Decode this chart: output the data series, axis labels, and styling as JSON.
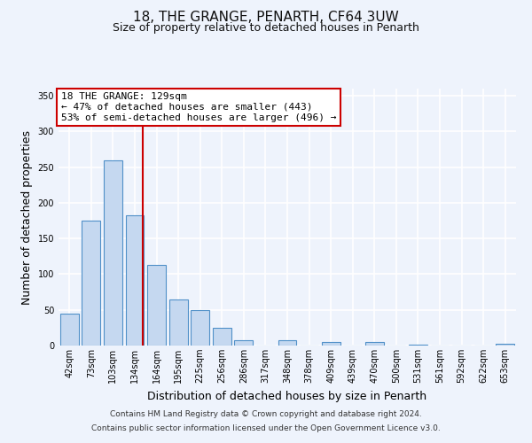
{
  "title": "18, THE GRANGE, PENARTH, CF64 3UW",
  "subtitle": "Size of property relative to detached houses in Penarth",
  "xlabel": "Distribution of detached houses by size in Penarth",
  "ylabel": "Number of detached properties",
  "categories": [
    "42sqm",
    "73sqm",
    "103sqm",
    "134sqm",
    "164sqm",
    "195sqm",
    "225sqm",
    "256sqm",
    "286sqm",
    "317sqm",
    "348sqm",
    "378sqm",
    "409sqm",
    "439sqm",
    "470sqm",
    "500sqm",
    "531sqm",
    "561sqm",
    "592sqm",
    "622sqm",
    "653sqm"
  ],
  "values": [
    45,
    175,
    260,
    183,
    113,
    64,
    50,
    25,
    7,
    0,
    8,
    0,
    5,
    0,
    5,
    0,
    1,
    0,
    0,
    0,
    2
  ],
  "bar_color": "#c5d8f0",
  "bar_edge_color": "#5090c8",
  "vline_color": "#cc0000",
  "vline_index": 3,
  "annotation_box_text": "18 THE GRANGE: 129sqm\n← 47% of detached houses are smaller (443)\n53% of semi-detached houses are larger (496) →",
  "annotation_box_color": "#cc0000",
  "ylim": [
    0,
    360
  ],
  "yticks": [
    0,
    50,
    100,
    150,
    200,
    250,
    300,
    350
  ],
  "footer_line1": "Contains HM Land Registry data © Crown copyright and database right 2024.",
  "footer_line2": "Contains public sector information licensed under the Open Government Licence v3.0.",
  "background_color": "#eef3fc",
  "grid_color": "#ffffff",
  "title_fontsize": 11,
  "subtitle_fontsize": 9,
  "axis_label_fontsize": 9,
  "tick_fontsize": 7,
  "annotation_fontsize": 8,
  "footer_fontsize": 6.5
}
